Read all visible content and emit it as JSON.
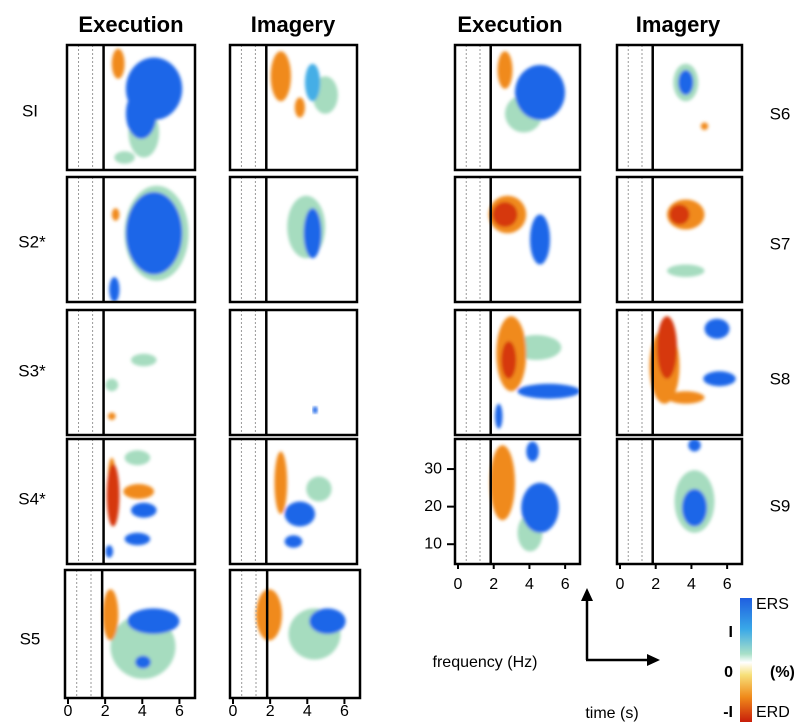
{
  "headers": [
    "Execution",
    "Imagery",
    "Execution",
    "Imagery"
  ],
  "subjects": [
    "SI",
    "S2*",
    "S3*",
    "S4*",
    "S5",
    "S6",
    "S7",
    "S8",
    "S9"
  ],
  "time_ticks": [
    0,
    2,
    4,
    6
  ],
  "frequency_ticks": [
    30,
    20,
    10
  ],
  "axes": {
    "y_label": "frequency (Hz)",
    "x_label": "time (s)"
  },
  "colorbar": {
    "top": "ERS",
    "bottom": "ERD",
    "unit": "(%)",
    "ticks": [
      "I",
      "0",
      "-I"
    ]
  }
}
